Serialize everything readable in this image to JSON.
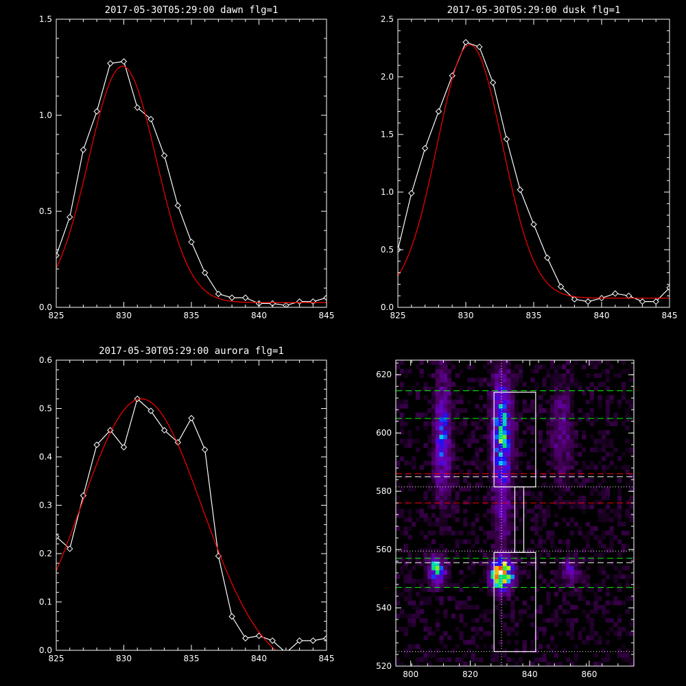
{
  "chart_data": [
    {
      "type": "line",
      "title": "2017-05-30T05:29:00 dawn flg=1",
      "xlim": [
        825,
        845
      ],
      "ylim": [
        0,
        1.5
      ],
      "x_ticks": [
        "825",
        "830",
        "835",
        "840",
        "845"
      ],
      "y_ticks": [
        "0.0",
        "0.5",
        "1.0",
        "1.5"
      ],
      "series": [
        {
          "style": "observed",
          "color": "#ffffff",
          "marker": "diamond",
          "x": [
            825,
            826,
            827,
            828,
            829,
            830,
            831,
            832,
            833,
            834,
            835,
            836,
            837,
            838,
            839,
            840,
            841,
            842,
            843,
            844,
            845
          ],
          "y": [
            0.27,
            0.47,
            0.82,
            1.02,
            1.27,
            1.28,
            1.04,
            0.98,
            0.79,
            0.53,
            0.34,
            0.18,
            0.07,
            0.05,
            0.05,
            0.02,
            0.02,
            0.01,
            0.03,
            0.03,
            0.05
          ]
        },
        {
          "style": "fit",
          "color": "#ff0000",
          "gauss": {
            "amp": 1.23,
            "center": 829.9,
            "sigma": 2.5,
            "offset": 0.025
          }
        }
      ]
    },
    {
      "type": "line",
      "title": "2017-05-30T05:29:00 dusk flg=1",
      "xlim": [
        825,
        845
      ],
      "ylim": [
        0,
        2.5
      ],
      "x_ticks": [
        "825",
        "830",
        "835",
        "840",
        "845"
      ],
      "y_ticks": [
        "0.0",
        "0.5",
        "1.0",
        "1.5",
        "2.0",
        "2.5"
      ],
      "series": [
        {
          "style": "observed",
          "color": "#ffffff",
          "marker": "diamond",
          "x": [
            825,
            826,
            827,
            828,
            829,
            830,
            831,
            832,
            833,
            834,
            835,
            836,
            837,
            838,
            839,
            840,
            841,
            842,
            843,
            844,
            845
          ],
          "y": [
            0.5,
            0.99,
            1.38,
            1.7,
            2.01,
            2.3,
            2.26,
            1.95,
            1.46,
            1.02,
            0.72,
            0.43,
            0.18,
            0.07,
            0.05,
            0.08,
            0.12,
            0.1,
            0.05,
            0.05,
            0.17
          ]
        },
        {
          "style": "fit",
          "color": "#ff0000",
          "gauss": {
            "amp": 2.2,
            "center": 830.3,
            "sigma": 2.4,
            "offset": 0.08
          }
        }
      ]
    },
    {
      "type": "line",
      "title": "2017-05-30T05:29:00 aurora flg=1",
      "xlim": [
        825,
        845
      ],
      "ylim": [
        0,
        0.6
      ],
      "x_ticks": [
        "825",
        "830",
        "835",
        "840",
        "845"
      ],
      "y_ticks": [
        "0.0",
        "0.1",
        "0.2",
        "0.3",
        "0.4",
        "0.5",
        "0.6"
      ],
      "series": [
        {
          "style": "observed",
          "color": "#ffffff",
          "marker": "diamond",
          "x": [
            825,
            826,
            827,
            828,
            829,
            830,
            831,
            832,
            833,
            834,
            835,
            836,
            837,
            838,
            839,
            840,
            841,
            842,
            843,
            844,
            845
          ],
          "y": [
            0.235,
            0.21,
            0.32,
            0.425,
            0.455,
            0.42,
            0.52,
            0.495,
            0.455,
            0.43,
            0.48,
            0.415,
            0.195,
            0.07,
            0.025,
            0.03,
            0.02,
            -0.005,
            0.02,
            0.02,
            0.025
          ]
        },
        {
          "style": "fit",
          "color": "#ff0000",
          "gauss": {
            "amp": 0.57,
            "center": 831.3,
            "sigma": 4.5,
            "offset": -0.05
          }
        }
      ]
    },
    {
      "type": "heatmap",
      "title": "",
      "xlim": [
        795,
        875
      ],
      "ylim": [
        520,
        625
      ],
      "x_ticks": [
        "800",
        "820",
        "840",
        "860"
      ],
      "y_ticks": [
        "520",
        "540",
        "560",
        "580",
        "600",
        "620"
      ],
      "cells": {
        "x_step": 1.33,
        "y_step": 1.5
      },
      "blobs": [
        {
          "x": 808,
          "y": 552,
          "sx": 1.8,
          "sy": 3.0,
          "amp": 0.6
        },
        {
          "x": 830,
          "y": 551,
          "sx": 2.4,
          "sy": 3.4,
          "amp": 1.0
        },
        {
          "x": 853,
          "y": 552,
          "sx": 2.0,
          "sy": 3.0,
          "amp": 0.25
        },
        {
          "x": 810,
          "y": 598,
          "sx": 1.8,
          "sy": 13.0,
          "amp": 0.38
        },
        {
          "x": 830,
          "y": 599,
          "sx": 2.2,
          "sy": 13.0,
          "amp": 0.52
        },
        {
          "x": 850,
          "y": 600,
          "sx": 2.5,
          "sy": 11.0,
          "amp": 0.16
        },
        {
          "x": 830,
          "y": 570,
          "sx": 2.0,
          "sy": 8.0,
          "amp": 0.14
        }
      ],
      "vertical_line": {
        "x": 830.5,
        "color": "#ffffff",
        "style": "dotted"
      },
      "hlines": [
        {
          "y": 614.5,
          "color": "#00ff00",
          "style": "dashed"
        },
        {
          "y": 605,
          "color": "#00ff00",
          "style": "dashed"
        },
        {
          "y": 586,
          "color": "#ff0000",
          "style": "dashed"
        },
        {
          "y": 585,
          "color": "#ffffff",
          "style": "dashed"
        },
        {
          "y": 581.5,
          "color": "#ffffff",
          "style": "dotted"
        },
        {
          "y": 576,
          "color": "#ff0000",
          "style": "dashed"
        },
        {
          "y": 559.5,
          "color": "#ffffff",
          "style": "dotted"
        },
        {
          "y": 557,
          "color": "#00ff00",
          "style": "dashed"
        },
        {
          "y": 555.5,
          "color": "#ffffff",
          "style": "dashed"
        },
        {
          "y": 547,
          "color": "#00ff00",
          "style": "dashed"
        },
        {
          "y": 525,
          "color": "#ffffff",
          "style": "dotted"
        }
      ],
      "boxes": [
        {
          "x0": 828,
          "x1": 842,
          "y0": 581.5,
          "y1": 614
        },
        {
          "x0": 835,
          "x1": 838,
          "y0": 559,
          "y1": 581.5
        },
        {
          "x0": 828,
          "x1": 842,
          "y0": 525,
          "y1": 559
        }
      ]
    }
  ]
}
